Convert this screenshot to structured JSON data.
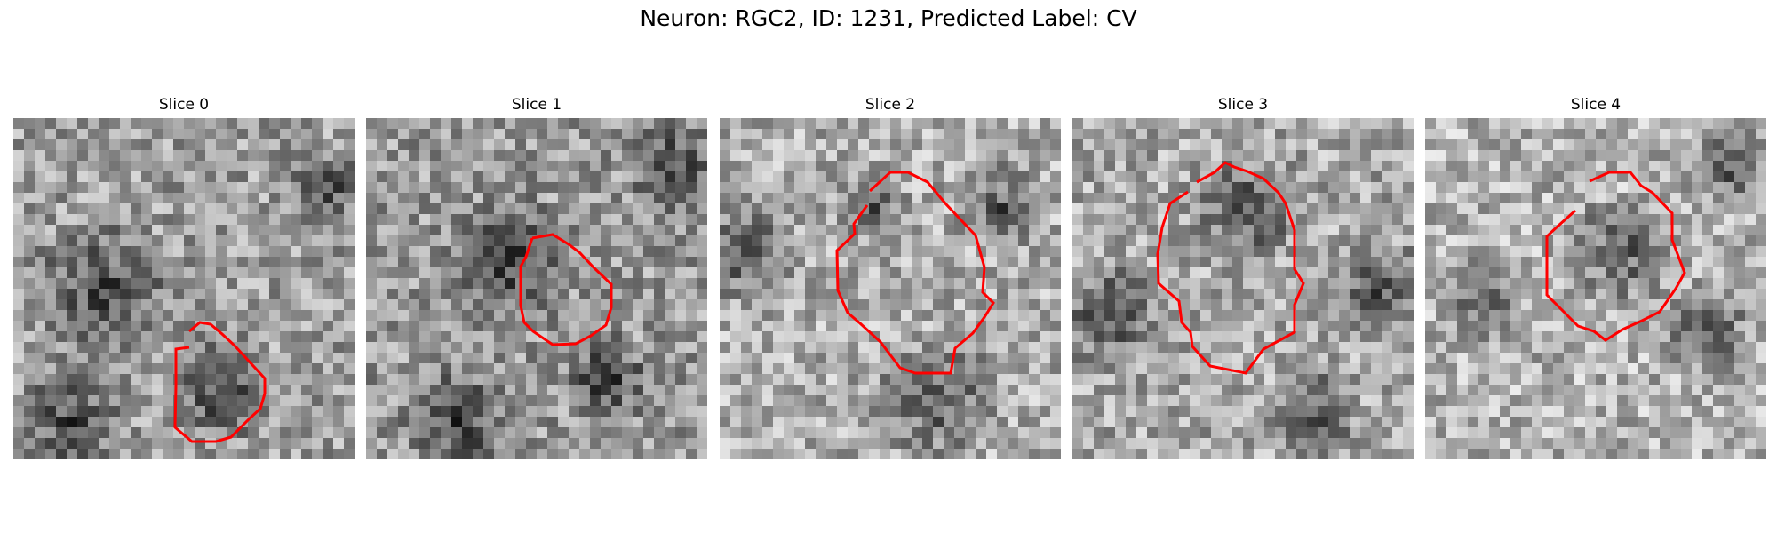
{
  "figure": {
    "title": "Neuron: RGC2, ID: 1231, Predicted Label: CV"
  },
  "panels": [
    {
      "title": "Slice 0"
    },
    {
      "title": "Slice 1"
    },
    {
      "title": "Slice 2"
    },
    {
      "title": "Slice 3"
    },
    {
      "title": "Slice 4"
    }
  ],
  "contour_color": "#ff0000",
  "colormap": "gray"
}
